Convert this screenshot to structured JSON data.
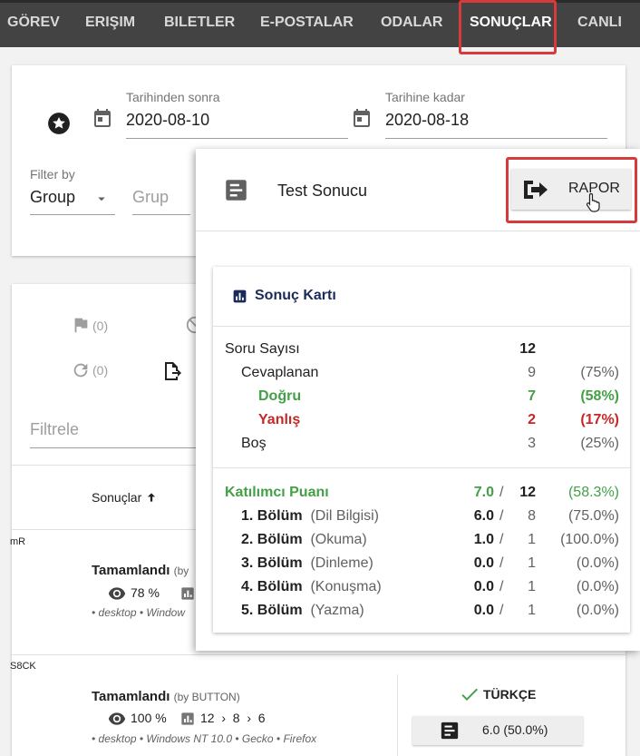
{
  "nav": {
    "tabs": [
      {
        "label": "GÖREV"
      },
      {
        "label": "ERIŞIM"
      },
      {
        "label": "BILETLER"
      },
      {
        "label": "E-POSTALAR"
      },
      {
        "label": "ODALAR"
      },
      {
        "label": "SONUÇLAR",
        "active": true
      },
      {
        "label": "CANLI"
      }
    ]
  },
  "filters": {
    "date_from_label": "Tarihinden sonra",
    "date_from_value": "2020-08-10",
    "date_to_label": "Tarihine kadar",
    "date_to_value": "2020-08-18",
    "filter_by_label": "Filter by",
    "filter_by_value": "Group",
    "group_placeholder": "Grup"
  },
  "list": {
    "flag_count": "(0)",
    "retry_count": "(0)",
    "filter_placeholder": "Filtrele",
    "col_results": "Sonuçlar",
    "rows": [
      {
        "id": "mR",
        "status": "Tamamlandı",
        "by": "(by",
        "views": "78 %",
        "device": "• desktop • Window"
      },
      {
        "id": "S8CK",
        "status": "Tamamlandı",
        "by": "(by BUTTON)",
        "views": "100 %",
        "chart_path": "12  ›  8  ›  6",
        "device": "• desktop • Windows NT 10.0 • Gecko • Firefox",
        "language": "TÜRKÇE",
        "score": "6.0 (50.0%)"
      }
    ]
  },
  "dialog": {
    "title": "Test Sonucu",
    "report_button": "RAPOR",
    "card_title": "Sonuç Kartı",
    "stats": {
      "question_count_label": "Soru Sayısı",
      "question_count": "12",
      "answered_label": "Cevaplanan",
      "answered": "9",
      "answered_pct": "(75%)",
      "correct_label": "Doğru",
      "correct": "7",
      "correct_pct": "(58%)",
      "wrong_label": "Yanlış",
      "wrong": "2",
      "wrong_pct": "(17%)",
      "empty_label": "Boş",
      "empty": "3",
      "empty_pct": "(25%)"
    },
    "score": {
      "label": "Katılımcı Puanı",
      "value": "7.0",
      "sep": "/",
      "total": "12",
      "pct": "(58.3%)"
    },
    "sections": [
      {
        "name": "1. Bölüm",
        "sub": "(Dil Bilgisi)",
        "value": "6.0",
        "total": "8",
        "pct": "(75.0%)"
      },
      {
        "name": "2. Bölüm",
        "sub": "(Okuma)",
        "value": "1.0",
        "total": "1",
        "pct": "(100.0%)"
      },
      {
        "name": "3. Bölüm",
        "sub": "(Dinleme)",
        "value": "0.0",
        "total": "1",
        "pct": "(0.0%)"
      },
      {
        "name": "4. Bölüm",
        "sub": "(Konuşma)",
        "value": "0.0",
        "total": "1",
        "pct": "(0.0%)"
      },
      {
        "name": "5. Bölüm",
        "sub": "(Yazma)",
        "value": "0.0",
        "total": "1",
        "pct": "(0.0%)"
      }
    ]
  },
  "colors": {
    "nav_bg": "#434343",
    "highlight": "#d63a3a",
    "green": "#43a047",
    "red": "#c62828",
    "navy": "#1a2b5a"
  }
}
